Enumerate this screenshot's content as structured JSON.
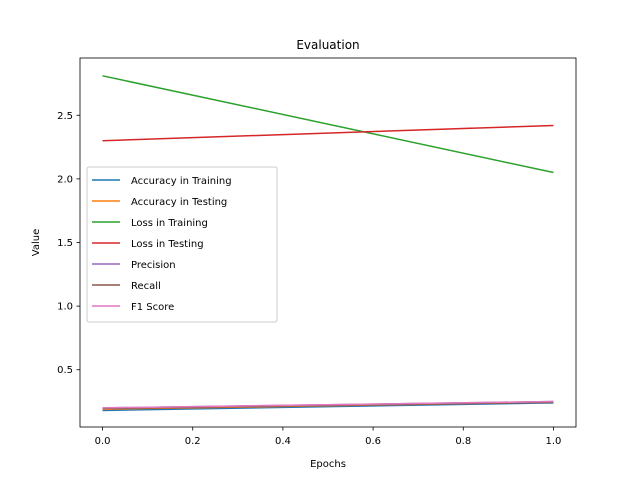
{
  "chart_data": {
    "type": "line",
    "title": "Evaluation",
    "xlabel": "Epochs",
    "ylabel": "Value",
    "xlim": [
      -0.05,
      1.05
    ],
    "ylim": [
      0.05,
      2.95
    ],
    "x_ticks": [
      0.0,
      0.2,
      0.4,
      0.6,
      0.8,
      1.0
    ],
    "x_tick_labels": [
      "0.0",
      "0.2",
      "0.4",
      "0.6",
      "0.8",
      "1.0"
    ],
    "y_ticks": [
      0.5,
      1.0,
      1.5,
      2.0,
      2.5
    ],
    "y_tick_labels": [
      "0.5",
      "1.0",
      "1.5",
      "2.0",
      "2.5"
    ],
    "grid": false,
    "legend_position": "center-left",
    "series": [
      {
        "name": "Accuracy in Training",
        "color": "#1f77b4",
        "x": [
          0,
          1
        ],
        "y": [
          0.18,
          0.24
        ]
      },
      {
        "name": "Accuracy in Testing",
        "color": "#ff7f0e",
        "x": [
          0,
          1
        ],
        "y": [
          0.19,
          0.245
        ]
      },
      {
        "name": "Loss in Training",
        "color": "#2ca02c",
        "x": [
          0,
          1
        ],
        "y": [
          2.81,
          2.05
        ]
      },
      {
        "name": "Loss in Testing",
        "color": "#d62728",
        "x": [
          0,
          1
        ],
        "y": [
          2.3,
          2.42
        ]
      },
      {
        "name": "Precision",
        "color": "#9467bd",
        "x": [
          0,
          1
        ],
        "y": [
          0.2,
          0.25
        ]
      },
      {
        "name": "Recall",
        "color": "#8c564b",
        "x": [
          0,
          1
        ],
        "y": [
          0.195,
          0.245
        ]
      },
      {
        "name": "F1 Score",
        "color": "#e377c2",
        "x": [
          0,
          1
        ],
        "y": [
          0.2,
          0.25
        ]
      }
    ]
  }
}
